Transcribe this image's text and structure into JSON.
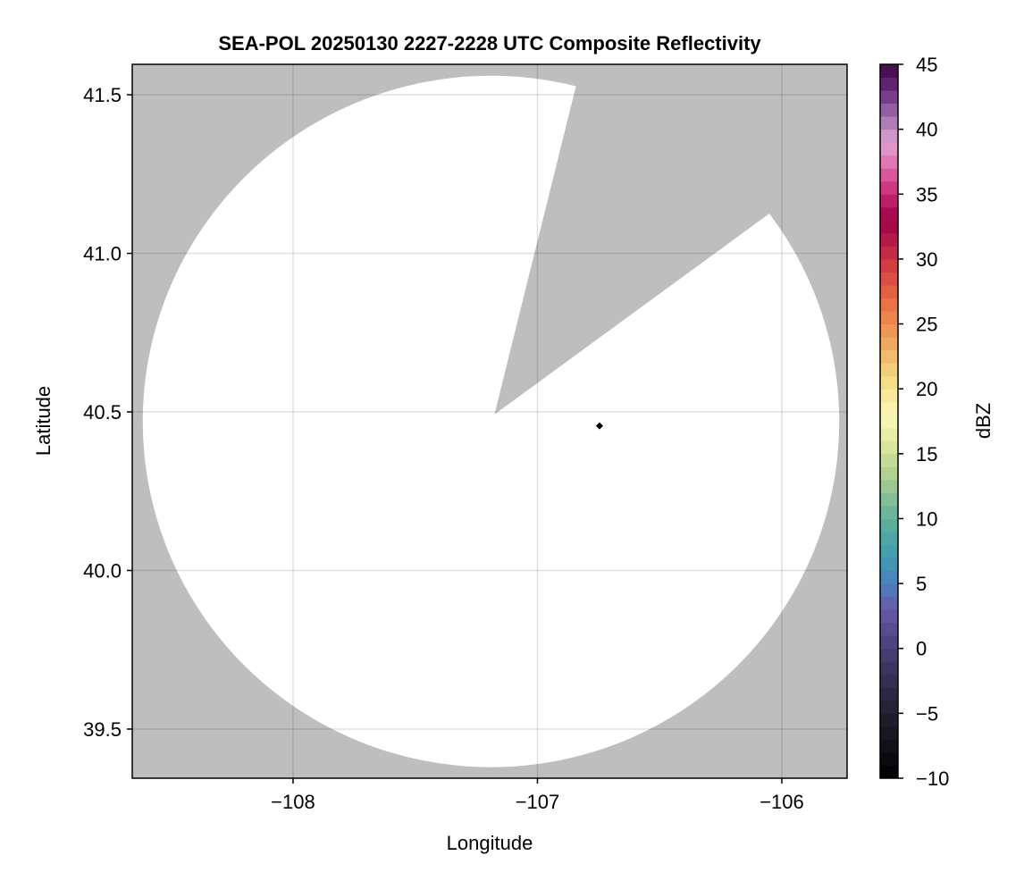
{
  "chart_data": {
    "type": "heatmap",
    "title": "SEA-POL 20250130 2227-2228 UTC Composite Reflectivity",
    "xlabel": "Longitude",
    "ylabel": "Latitude",
    "xlim": [
      -108.658,
      -105.733
    ],
    "ylim": [
      39.345,
      41.596
    ],
    "xticks": [
      -108,
      -107,
      -106
    ],
    "xtick_labels": [
      "−108",
      "−107",
      "−106"
    ],
    "yticks": [
      39.5,
      40.0,
      40.5,
      41.0,
      41.5
    ],
    "ytick_labels": [
      "39.5",
      "40.0",
      "40.5",
      "41.0",
      "41.5"
    ],
    "grid": true,
    "missing_color": "#bebebe",
    "coverage": {
      "center": [
        -107.19,
        40.47
      ],
      "radius_lon": 1.425,
      "radius_lat": 1.09,
      "fill": "#ffffff",
      "blocked_wedge": [
        [
          -107.176,
          40.492
        ],
        [
          -106.843,
          41.525
        ],
        [
          -106.066,
          41.117
        ]
      ]
    },
    "marker": {
      "lon": -106.746,
      "lat": 40.456,
      "shape": "diamond",
      "color": "#000000"
    },
    "colorbar": {
      "label": "dBZ",
      "range": [
        -10,
        45
      ],
      "step": 1,
      "ticks": [
        -10,
        -5,
        0,
        5,
        10,
        15,
        20,
        25,
        30,
        35,
        40,
        45
      ],
      "tick_labels": [
        "−10",
        "−5",
        "0",
        "5",
        "10",
        "15",
        "20",
        "25",
        "30",
        "35",
        "40",
        "45"
      ],
      "colormap": [
        [
          -10,
          "#000000"
        ],
        [
          -6,
          "#1c1a26"
        ],
        [
          -3,
          "#302a48"
        ],
        [
          0,
          "#4a3f78"
        ],
        [
          3,
          "#6a58a8"
        ],
        [
          5,
          "#4a80c0"
        ],
        [
          7,
          "#3f9cb0"
        ],
        [
          10,
          "#5fb29a"
        ],
        [
          13,
          "#a6cc8e"
        ],
        [
          16,
          "#e2eaa0"
        ],
        [
          18,
          "#fbf8b8"
        ],
        [
          21,
          "#f2d880"
        ],
        [
          24,
          "#eea058"
        ],
        [
          27,
          "#e86a40"
        ],
        [
          30,
          "#cc3444"
        ],
        [
          33,
          "#a00048"
        ],
        [
          35,
          "#c82870"
        ],
        [
          37,
          "#e068a8"
        ],
        [
          39,
          "#e0a2d2"
        ],
        [
          41,
          "#a070b0"
        ],
        [
          43,
          "#6a2c80"
        ],
        [
          45,
          "#3c0848"
        ]
      ]
    }
  }
}
